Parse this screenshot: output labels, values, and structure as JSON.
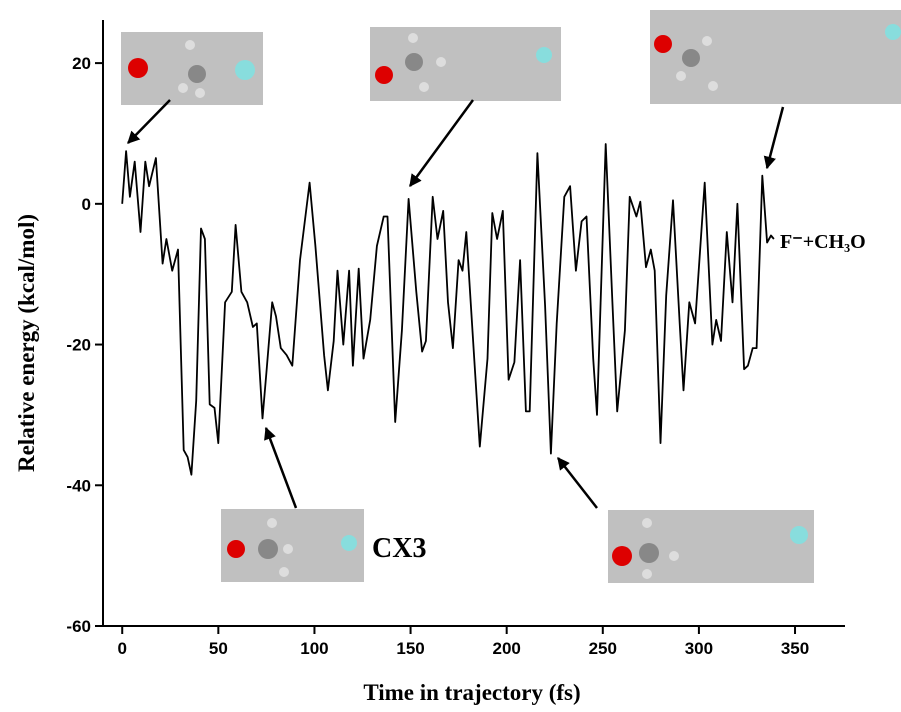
{
  "chart_data": {
    "type": "line",
    "xlabel": "Time in trajectory (fs)",
    "ylabel": "Relative energy (kcal/mol)",
    "annotations": [
      "F⁻+CH₃O",
      "CX3"
    ],
    "xlim": [
      -10,
      376
    ],
    "ylim": [
      -60,
      23
    ],
    "xticks": [
      0,
      50,
      100,
      150,
      200,
      250,
      300,
      350
    ],
    "yticks": [
      -60,
      -40,
      -20,
      0,
      20
    ],
    "series": [
      {
        "color": "#000000",
        "x": [
          0,
          2,
          4,
          6.5,
          9.5,
          12,
          14,
          17.5,
          21,
          23,
          26,
          29,
          32,
          34,
          36,
          38.5,
          41,
          43,
          45.5,
          48,
          50,
          53.5,
          57,
          59,
          62,
          65,
          68,
          70,
          73,
          75,
          78,
          80,
          82.5,
          85.5,
          88.5,
          92.5,
          97.5,
          100.5,
          105,
          107,
          110,
          112,
          115,
          118,
          120,
          123,
          125.5,
          129,
          132.5,
          136,
          138,
          142,
          145.5,
          149,
          153,
          156,
          158,
          161.5,
          164,
          167,
          169.5,
          172,
          175,
          177,
          179,
          183,
          186,
          190,
          192.5,
          195,
          198,
          201,
          204,
          207,
          210,
          212,
          216,
          220,
          223,
          226,
          230,
          233,
          236,
          239,
          241.5,
          245,
          247,
          251.5,
          255,
          257.5,
          261.5,
          264,
          267.5,
          269.5,
          272.5,
          275,
          277,
          280,
          283,
          286.5,
          290,
          292,
          295,
          298,
          303,
          307,
          309,
          311.5,
          314.5,
          317.5,
          320,
          323.5,
          325.5,
          328,
          330,
          333,
          335.5,
          337.5,
          339
        ],
        "values": [
          0,
          7.5,
          1,
          6,
          -4,
          6,
          2.5,
          6.5,
          -8.5,
          -5,
          -9.5,
          -6.5,
          -35,
          -36,
          -38.5,
          -28,
          -3.5,
          -5,
          -28.5,
          -29,
          -34,
          -14,
          -12.5,
          -3,
          -12.5,
          -14,
          -17.5,
          -17,
          -30.5,
          -24,
          -14,
          -16,
          -20.5,
          -21.5,
          -23,
          -8,
          3,
          -6,
          -21.5,
          -26.5,
          -19.5,
          -9.5,
          -20,
          -9.5,
          -23,
          -9.2,
          -22,
          -16.5,
          -6,
          -1.8,
          -1.8,
          -31,
          -18,
          0.7,
          -12.5,
          -21,
          -19.5,
          1,
          -5,
          -1,
          -14,
          -20.5,
          -8,
          -9.5,
          -4,
          -21.5,
          -34.5,
          -22,
          -1.3,
          -5,
          -1,
          -25,
          -22.5,
          -8,
          -29.5,
          -29.5,
          7.2,
          -14.5,
          -35.5,
          -17,
          1,
          2.5,
          -9.5,
          -2.5,
          -1.8,
          -22,
          -30,
          8.5,
          -14,
          -29.5,
          -18,
          1,
          -1.8,
          0.3,
          -9,
          -6.5,
          -9.5,
          -34,
          -13,
          0.5,
          -17,
          -26.5,
          -14,
          -17,
          3,
          -20,
          -16.5,
          -19.5,
          -4,
          -14,
          0,
          -23.5,
          -23,
          -20.5,
          -20.5,
          4,
          -5.5,
          -4.5,
          -5
        ]
      }
    ]
  }
}
